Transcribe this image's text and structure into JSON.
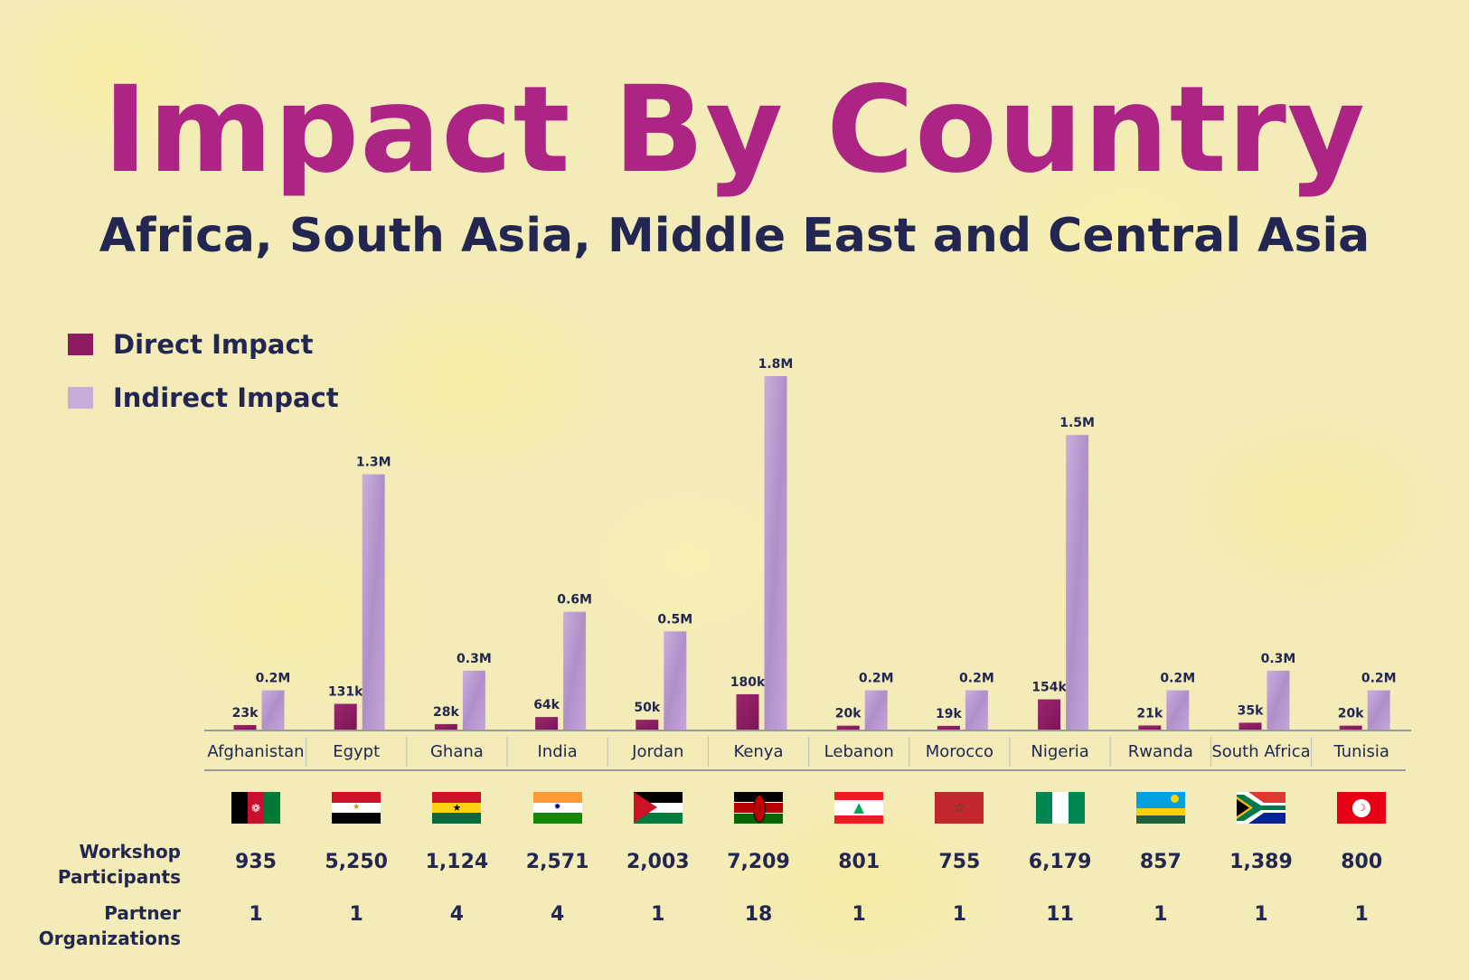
{
  "title": "Impact By Country",
  "subtitle": "Africa, South Asia, Middle East and Central Asia",
  "legend": {
    "direct": "Direct Impact",
    "indirect": "Indirect Impact"
  },
  "colors": {
    "title": "#ac2484",
    "text": "#222650",
    "direct": "#8c1b62",
    "indirect": "#b898cf",
    "background": "#f3ecb9",
    "axis": "#9a9a9a"
  },
  "chart_data": {
    "type": "bar",
    "categories": [
      "Afghanistan",
      "Egypt",
      "Ghana",
      "India",
      "Jordan",
      "Kenya",
      "Lebanon",
      "Morocco",
      "Nigeria",
      "Rwanda",
      "South Africa",
      "Tunisia"
    ],
    "series": [
      {
        "name": "Direct Impact",
        "values": [
          23000,
          131000,
          28000,
          64000,
          50000,
          180000,
          20000,
          19000,
          154000,
          21000,
          35000,
          20000
        ],
        "labels": [
          "23k",
          "131k",
          "28k",
          "64k",
          "50k",
          "180k",
          "20k",
          "19k",
          "154k",
          "21k",
          "35k",
          "20k"
        ]
      },
      {
        "name": "Indirect Impact",
        "values": [
          200000,
          1300000,
          300000,
          600000,
          500000,
          1800000,
          200000,
          200000,
          1500000,
          200000,
          300000,
          200000
        ],
        "labels": [
          "0.2M",
          "1.3M",
          "0.3M",
          "0.6M",
          "0.5M",
          "1.8M",
          "0.2M",
          "0.2M",
          "1.5M",
          "0.2M",
          "0.3M",
          "0.2M"
        ]
      }
    ],
    "ylim": [
      0,
      1800000
    ],
    "grid": false,
    "legend_position": "top-left"
  },
  "flags": [
    "flag-afghanistan",
    "flag-egypt",
    "flag-ghana",
    "flag-india",
    "flag-jordan",
    "flag-kenya",
    "flag-lebanon",
    "flag-morocco",
    "flag-nigeria",
    "flag-rwanda",
    "flag-south-africa",
    "flag-tunisia"
  ],
  "table": {
    "workshop_label_1": "Workshop",
    "workshop_label_2": "Participants",
    "partner_label_1": "Partner",
    "partner_label_2": "Organizations",
    "workshop_participants": [
      "935",
      "5,250",
      "1,124",
      "2,571",
      "2,003",
      "7,209",
      "801",
      "755",
      "6,179",
      "857",
      "1,389",
      "800"
    ],
    "partner_organizations": [
      "1",
      "1",
      "4",
      "4",
      "1",
      "18",
      "1",
      "1",
      "11",
      "1",
      "1",
      "1"
    ]
  }
}
